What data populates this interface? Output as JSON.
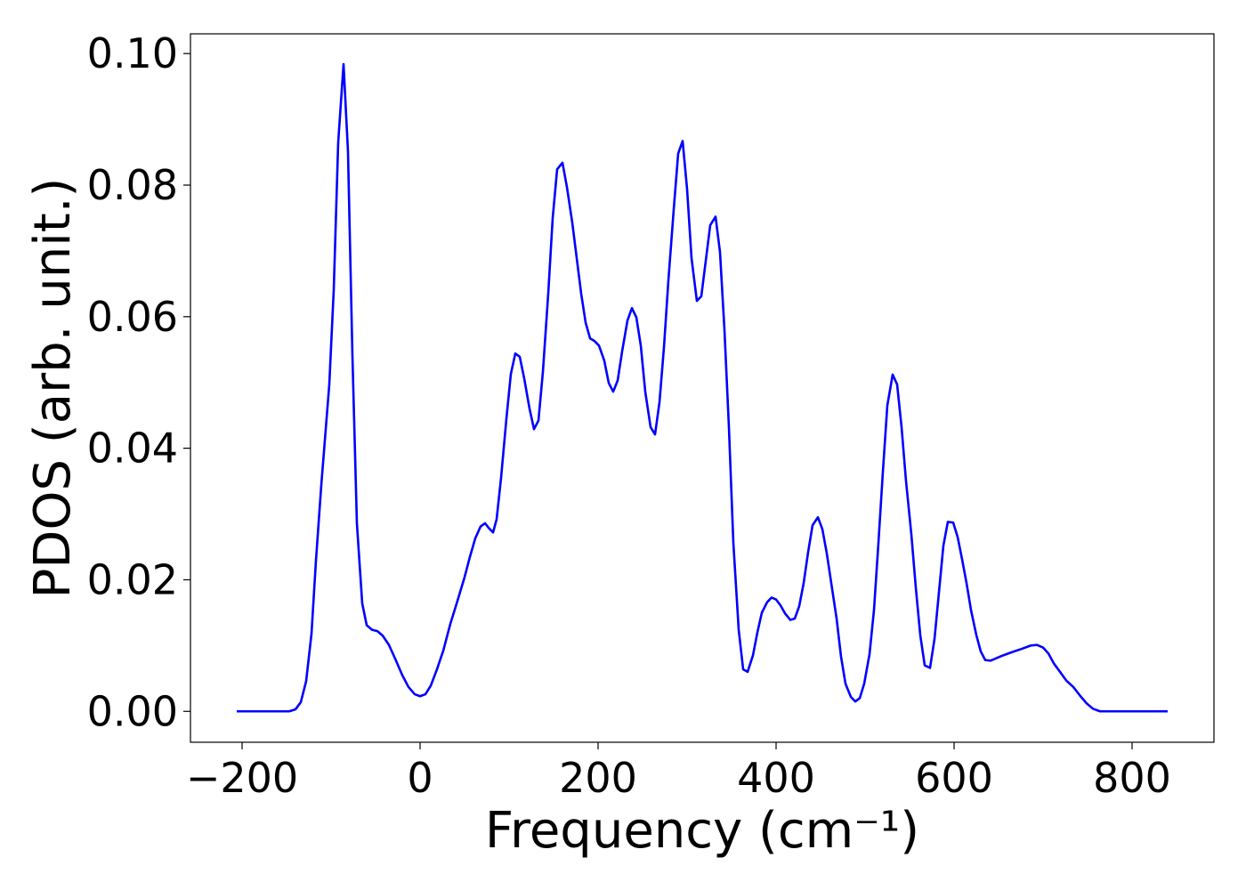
{
  "chart_data": {
    "type": "line",
    "xlabel": "Frequency (cm⁻¹)",
    "ylabel": "PDOS (arb. unit.)",
    "color": "#0000ff",
    "x": [
      -206,
      -147,
      -140,
      -134,
      -128,
      -122,
      -117,
      -111,
      -102,
      -97,
      -92,
      -86,
      -81,
      -76,
      -71,
      -65,
      -60,
      -54,
      -48,
      -42,
      -35,
      -28,
      -20,
      -13,
      -6,
      0,
      6,
      12,
      19,
      26,
      34,
      42,
      50,
      56,
      62,
      68,
      73,
      77,
      82,
      86,
      91,
      97,
      102,
      107,
      112,
      117,
      123,
      128,
      133,
      138,
      144,
      149,
      154,
      160,
      165,
      171,
      176,
      181,
      186,
      191,
      196,
      201,
      207,
      212,
      217,
      222,
      227,
      233,
      238,
      243,
      248,
      253,
      259,
      264,
      269,
      274,
      279,
      285,
      290,
      295,
      300,
      305,
      311,
      316,
      321,
      326,
      332,
      337,
      342,
      347,
      352,
      358,
      363,
      368,
      374,
      379,
      384,
      390,
      395,
      400,
      405,
      410,
      416,
      421,
      426,
      431,
      436,
      441,
      447,
      452,
      457,
      462,
      468,
      473,
      478,
      484,
      489,
      494,
      499,
      505,
      510,
      515,
      520,
      525,
      531,
      536,
      541,
      546,
      552,
      557,
      562,
      567,
      573,
      578,
      583,
      588,
      593,
      599,
      604,
      609,
      614,
      619,
      625,
      630,
      635,
      641,
      646,
      653,
      663,
      676,
      686,
      693,
      700,
      706,
      712,
      719,
      726,
      734,
      742,
      749,
      756,
      764,
      840
    ],
    "values": [
      0,
      0,
      0.0003,
      0.0014,
      0.0046,
      0.0118,
      0.0229,
      0.0344,
      0.0497,
      0.0641,
      0.0865,
      0.0984,
      0.0851,
      0.054,
      0.0286,
      0.0164,
      0.0131,
      0.0124,
      0.0122,
      0.0115,
      0.0101,
      0.008,
      0.0055,
      0.0037,
      0.0026,
      0.0023,
      0.0026,
      0.0039,
      0.0064,
      0.0092,
      0.0133,
      0.0168,
      0.0204,
      0.0235,
      0.0263,
      0.0281,
      0.0286,
      0.0279,
      0.0272,
      0.0292,
      0.0355,
      0.0445,
      0.0513,
      0.0544,
      0.0539,
      0.0506,
      0.046,
      0.0429,
      0.0442,
      0.0516,
      0.0635,
      0.075,
      0.0824,
      0.0834,
      0.0797,
      0.0743,
      0.0689,
      0.0635,
      0.0591,
      0.0567,
      0.0563,
      0.0556,
      0.0533,
      0.0499,
      0.0486,
      0.0503,
      0.0547,
      0.0594,
      0.0613,
      0.0599,
      0.0556,
      0.0486,
      0.0432,
      0.0421,
      0.047,
      0.0553,
      0.0655,
      0.0763,
      0.0848,
      0.0867,
      0.0794,
      0.0689,
      0.0624,
      0.0631,
      0.0685,
      0.0739,
      0.0752,
      0.0698,
      0.058,
      0.0432,
      0.0256,
      0.0124,
      0.0064,
      0.006,
      0.0085,
      0.012,
      0.015,
      0.0166,
      0.0173,
      0.017,
      0.0161,
      0.0149,
      0.0139,
      0.0141,
      0.016,
      0.0195,
      0.0242,
      0.0283,
      0.0295,
      0.0277,
      0.024,
      0.0195,
      0.0141,
      0.0083,
      0.0042,
      0.0022,
      0.0015,
      0.002,
      0.0042,
      0.0087,
      0.0154,
      0.0256,
      0.0364,
      0.0465,
      0.0512,
      0.0497,
      0.0432,
      0.035,
      0.0269,
      0.0188,
      0.0116,
      0.007,
      0.0066,
      0.011,
      0.0181,
      0.0252,
      0.0288,
      0.0287,
      0.0265,
      0.0231,
      0.0195,
      0.0154,
      0.0116,
      0.0091,
      0.0078,
      0.0077,
      0.008,
      0.0084,
      0.0089,
      0.0095,
      0.01,
      0.0101,
      0.0097,
      0.0088,
      0.0073,
      0.006,
      0.0047,
      0.0037,
      0.0023,
      0.0012,
      0.0004,
      0,
      0
    ],
    "xlim": [
      -258,
      892
    ],
    "ylim": [
      -0.0047,
      0.103
    ],
    "xticks": [
      {
        "value": -200,
        "label": "−200"
      },
      0,
      200,
      400,
      600,
      800
    ],
    "yticks": [
      {
        "value": 0,
        "label": "0.00"
      },
      {
        "value": 0.02,
        "label": "0.02"
      },
      {
        "value": 0.04,
        "label": "0.04"
      },
      {
        "value": 0.06,
        "label": "0.06"
      },
      {
        "value": 0.08,
        "label": "0.08"
      },
      {
        "value": 0.1,
        "label": "0.10"
      }
    ],
    "grid": false
  }
}
